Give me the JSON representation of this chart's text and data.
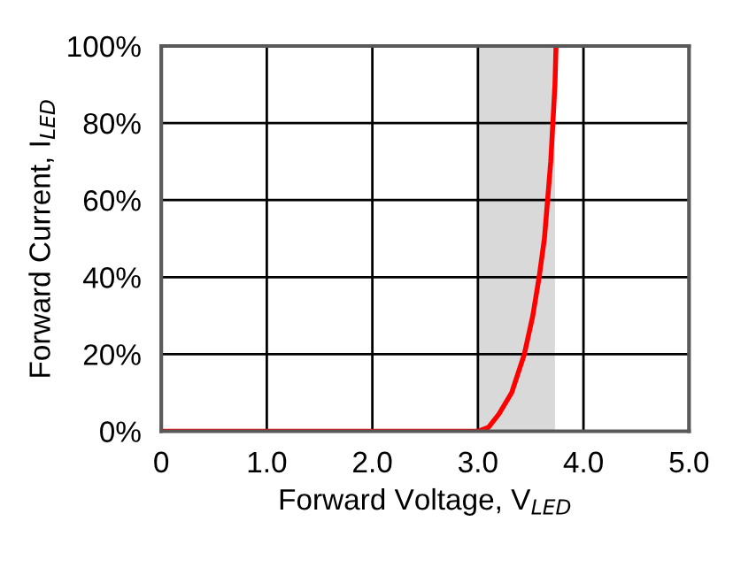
{
  "chart_data": {
    "type": "line",
    "xlabel": "Forward Voltage, V$_{LED}$",
    "ylabel": "Forward Current, I$_{LED}$",
    "x": [
      0,
      3.0,
      3.1,
      3.2,
      3.32,
      3.44,
      3.52,
      3.58,
      3.63,
      3.66,
      3.69,
      3.71,
      3.73,
      3.74
    ],
    "series": [
      {
        "color": "#ff0000",
        "values": [
          0,
          0,
          1,
          4.5,
          10,
          20,
          30,
          40,
          50,
          60,
          70,
          80,
          90,
          100
        ]
      }
    ],
    "xlim": [
      0,
      5
    ],
    "ylim": [
      0,
      100
    ],
    "xticks": [
      0,
      {
        "value": 1,
        "label": "1.0"
      },
      {
        "value": 2,
        "label": "2.0"
      },
      {
        "value": 3,
        "label": "3.0"
      },
      {
        "value": 4,
        "label": "4.0"
      },
      {
        "value": 5,
        "label": "5.0"
      }
    ],
    "yticks": [
      {
        "value": 0,
        "label": "0%"
      },
      {
        "value": 20,
        "label": "20%"
      },
      {
        "value": 40,
        "label": "40%"
      },
      {
        "value": 60,
        "label": "60%"
      },
      {
        "value": 80,
        "label": "80%"
      },
      {
        "value": 100,
        "label": "100%"
      }
    ],
    "bands": [
      {
        "axis": "x",
        "from": 3.0,
        "to": 3.73,
        "color": "#d9d9d9"
      }
    ],
    "grid": true,
    "legend": false
  }
}
